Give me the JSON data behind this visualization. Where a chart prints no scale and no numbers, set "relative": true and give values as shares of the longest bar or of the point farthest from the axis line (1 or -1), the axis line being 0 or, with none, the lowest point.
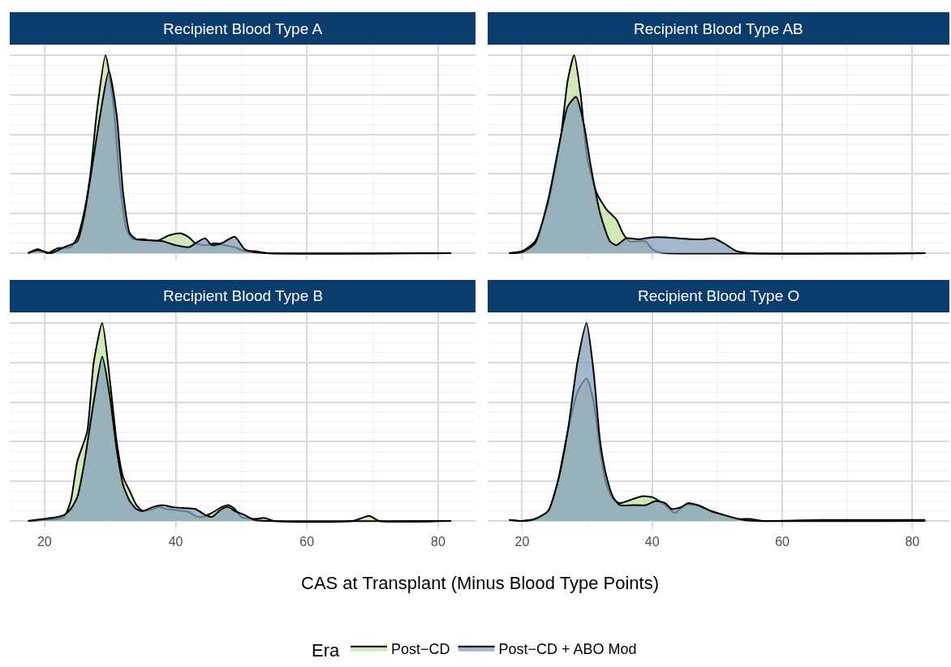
{
  "chart_data": [
    {
      "type": "area",
      "title": "Recipient Blood Type A",
      "relative": true,
      "xlim": [
        14.7,
        85.7
      ],
      "xticks": [
        20,
        40,
        60,
        80
      ],
      "grid": true,
      "tick_labels": false,
      "legend": "bottom",
      "legend_title": "Era",
      "series": [
        {
          "name": "Post−CD",
          "color": "#c2e0a0",
          "x": [
            17.5,
            19,
            20.5,
            22,
            24,
            25,
            26,
            27,
            28,
            29.3,
            30.5,
            31.5,
            32.5,
            33.5,
            35,
            37,
            39,
            40.7,
            42,
            43,
            44.5,
            46,
            47.5,
            49,
            50.5,
            52,
            54,
            82
          ],
          "values": [
            0,
            0.02,
            0,
            0.025,
            0.03,
            0.08,
            0.2,
            0.4,
            0.72,
            1.0,
            0.75,
            0.35,
            0.12,
            0.07,
            0.07,
            0.06,
            0.09,
            0.1,
            0.08,
            0.05,
            0.04,
            0.05,
            0.04,
            0.03,
            0.01,
            0.01,
            0,
            0
          ]
        },
        {
          "name": "Post−CD + ABO Mod",
          "color": "#84a0bc",
          "x": [
            17.5,
            19,
            21,
            23,
            25,
            26,
            27,
            28.5,
            29.8,
            31,
            32,
            33,
            34,
            36,
            38,
            40,
            42,
            43.5,
            44.5,
            45.5,
            47,
            49,
            50.5,
            52,
            54,
            82
          ],
          "values": [
            0,
            0.015,
            0,
            0.03,
            0.06,
            0.18,
            0.38,
            0.7,
            0.92,
            0.7,
            0.3,
            0.1,
            0.07,
            0.065,
            0.06,
            0.04,
            0.03,
            0.06,
            0.075,
            0.04,
            0.05,
            0.083,
            0.02,
            0.005,
            0,
            0
          ]
        }
      ]
    },
    {
      "type": "area",
      "title": "Recipient Blood Type AB",
      "relative": true,
      "xlim": [
        14.7,
        85.7
      ],
      "xticks": [
        20,
        40,
        60,
        80
      ],
      "grid": true,
      "tick_labels": false,
      "series": [
        {
          "color": "#c2e0a0",
          "x": [
            18,
            20,
            22,
            24,
            26,
            27,
            28,
            29,
            30,
            31.5,
            33,
            34.5,
            35.5,
            36.5,
            38,
            39,
            40,
            41,
            42,
            82
          ],
          "values": [
            0,
            0.01,
            0.06,
            0.25,
            0.6,
            0.87,
            1.0,
            0.8,
            0.48,
            0.3,
            0.22,
            0.17,
            0.1,
            0.06,
            0.06,
            0.06,
            0.02,
            0.005,
            0,
            0
          ]
        },
        {
          "color": "#84a0bc",
          "x": [
            18,
            20,
            22,
            24,
            26,
            27,
            28.3,
            29.5,
            30.5,
            32,
            33.5,
            34.5,
            36,
            38,
            40,
            42,
            44,
            46,
            48,
            49.5,
            51,
            53,
            55,
            82
          ],
          "values": [
            0,
            0.005,
            0.05,
            0.27,
            0.6,
            0.74,
            0.79,
            0.65,
            0.45,
            0.2,
            0.06,
            0.04,
            0.075,
            0.07,
            0.08,
            0.08,
            0.075,
            0.07,
            0.07,
            0.075,
            0.05,
            0.01,
            0,
            0
          ]
        }
      ]
    },
    {
      "type": "area",
      "title": "Recipient Blood Type B",
      "relative": true,
      "xlim": [
        14.7,
        85.7
      ],
      "xticks": [
        20,
        40,
        60,
        80
      ],
      "grid": true,
      "tick_labels": "x",
      "xlabel": "CAS at Transplant (Minus Blood Type Points)",
      "series": [
        {
          "color": "#c2e0a0",
          "x": [
            17.5,
            20,
            22,
            23,
            24,
            25,
            26.5,
            27.5,
            28.8,
            30,
            31,
            32,
            33,
            34,
            35,
            36.5,
            37.5,
            38.5,
            40,
            42,
            43,
            44,
            45.5,
            47,
            48,
            49,
            50,
            52,
            53.5,
            55,
            67,
            69.5,
            71,
            82
          ],
          "values": [
            0,
            0.005,
            0.01,
            0.02,
            0.1,
            0.3,
            0.45,
            0.8,
            1.0,
            0.7,
            0.4,
            0.22,
            0.15,
            0.08,
            0.05,
            0.06,
            0.07,
            0.06,
            0.055,
            0.045,
            0.025,
            0.02,
            0.04,
            0.07,
            0.08,
            0.06,
            0.02,
            0.01,
            0.015,
            0,
            0,
            0.025,
            0,
            0
          ]
        },
        {
          "color": "#84a0bc",
          "x": [
            17.5,
            20,
            22,
            23,
            24,
            25,
            26,
            27.5,
            28.8,
            30,
            31,
            32,
            33,
            34,
            35,
            36.5,
            38,
            39.5,
            41,
            43,
            44.5,
            45.5,
            47,
            48,
            49,
            50.5,
            52,
            54,
            82
          ],
          "values": [
            0,
            0.01,
            0.02,
            0.03,
            0.06,
            0.12,
            0.28,
            0.6,
            0.83,
            0.62,
            0.36,
            0.18,
            0.1,
            0.06,
            0.05,
            0.07,
            0.08,
            0.07,
            0.065,
            0.06,
            0.03,
            0.02,
            0.06,
            0.07,
            0.05,
            0.03,
            0.005,
            0,
            0
          ]
        }
      ]
    },
    {
      "type": "area",
      "title": "Recipient Blood Type O",
      "relative": true,
      "xlim": [
        14.7,
        85.7
      ],
      "xticks": [
        20,
        40,
        60,
        80
      ],
      "grid": true,
      "tick_labels": "x",
      "series": [
        {
          "color": "#c2e0a0",
          "x": [
            18,
            20,
            22,
            24,
            25.5,
            27,
            28.5,
            29.9,
            31,
            32,
            33,
            34,
            35,
            37,
            38.5,
            40,
            42,
            43.5,
            45,
            47,
            49,
            51,
            53,
            55,
            57,
            66,
            82
          ],
          "values": [
            0.005,
            0,
            0.01,
            0.05,
            0.2,
            0.45,
            0.65,
            0.72,
            0.6,
            0.35,
            0.18,
            0.11,
            0.09,
            0.11,
            0.125,
            0.12,
            0.08,
            0.04,
            0.08,
            0.08,
            0.05,
            0.03,
            0.01,
            0.01,
            0,
            0.005,
            0.005
          ]
        },
        {
          "color": "#84a0bc",
          "x": [
            18,
            20,
            22,
            24,
            25.5,
            27,
            28.5,
            29.9,
            31,
            32,
            33,
            34,
            35,
            37,
            39,
            40.5,
            42,
            43,
            44.5,
            45.5,
            47,
            49,
            51,
            54,
            56,
            82
          ],
          "values": [
            0.005,
            0,
            0.01,
            0.05,
            0.2,
            0.45,
            0.8,
            1.0,
            0.75,
            0.4,
            0.22,
            0.12,
            0.08,
            0.08,
            0.08,
            0.1,
            0.09,
            0.06,
            0.07,
            0.09,
            0.08,
            0.05,
            0.03,
            0.005,
            0,
            0
          ]
        }
      ]
    }
  ]
}
